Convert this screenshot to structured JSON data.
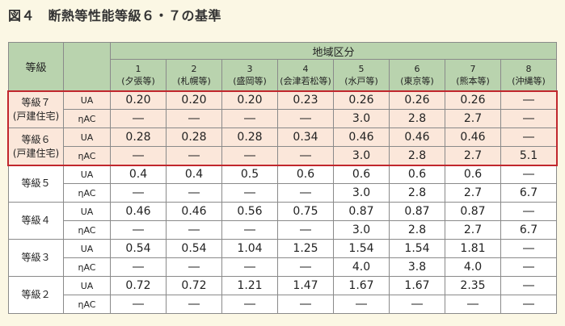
{
  "title": "図４　断熱等性能等級６・７の基準",
  "header": {
    "grade_label": "等級",
    "area_label": "地域区分",
    "regions": [
      {
        "num": "1",
        "name": "(夕張等)"
      },
      {
        "num": "2",
        "name": "(札幌等)"
      },
      {
        "num": "3",
        "name": "(盛岡等)"
      },
      {
        "num": "4",
        "name": "(会津若松等)"
      },
      {
        "num": "5",
        "name": "(水戸等)"
      },
      {
        "num": "6",
        "name": "(東京等)"
      },
      {
        "num": "7",
        "name": "(熊本等)"
      },
      {
        "num": "8",
        "name": "(沖縄等)"
      }
    ]
  },
  "grades": [
    {
      "name": "等級７",
      "sub": "(戸建住宅)",
      "highlight": true,
      "rows": [
        {
          "metric": "UA",
          "values": [
            "0.20",
            "0.20",
            "0.20",
            "0.23",
            "0.26",
            "0.26",
            "0.26",
            "―"
          ]
        },
        {
          "metric": "ηAC",
          "values": [
            "―",
            "―",
            "―",
            "―",
            "3.0",
            "2.8",
            "2.7",
            "―"
          ]
        }
      ]
    },
    {
      "name": "等級６",
      "sub": "(戸建住宅)",
      "highlight": true,
      "rows": [
        {
          "metric": "UA",
          "values": [
            "0.28",
            "0.28",
            "0.28",
            "0.34",
            "0.46",
            "0.46",
            "0.46",
            "―"
          ]
        },
        {
          "metric": "ηAC",
          "values": [
            "―",
            "―",
            "―",
            "―",
            "3.0",
            "2.8",
            "2.7",
            "5.1"
          ]
        }
      ]
    },
    {
      "name": "等級５",
      "sub": "",
      "highlight": false,
      "rows": [
        {
          "metric": "UA",
          "values": [
            "0.4",
            "0.4",
            "0.5",
            "0.6",
            "0.6",
            "0.6",
            "0.6",
            "―"
          ]
        },
        {
          "metric": "ηAC",
          "values": [
            "―",
            "―",
            "―",
            "―",
            "3.0",
            "2.8",
            "2.7",
            "6.7"
          ]
        }
      ]
    },
    {
      "name": "等級４",
      "sub": "",
      "highlight": false,
      "rows": [
        {
          "metric": "UA",
          "values": [
            "0.46",
            "0.46",
            "0.56",
            "0.75",
            "0.87",
            "0.87",
            "0.87",
            "―"
          ]
        },
        {
          "metric": "ηAC",
          "values": [
            "―",
            "―",
            "―",
            "―",
            "3.0",
            "2.8",
            "2.7",
            "6.7"
          ]
        }
      ]
    },
    {
      "name": "等級３",
      "sub": "",
      "highlight": false,
      "rows": [
        {
          "metric": "UA",
          "values": [
            "0.54",
            "0.54",
            "1.04",
            "1.25",
            "1.54",
            "1.54",
            "1.81",
            "―"
          ]
        },
        {
          "metric": "ηAC",
          "values": [
            "―",
            "―",
            "―",
            "―",
            "4.0",
            "3.8",
            "4.0",
            "―"
          ]
        }
      ]
    },
    {
      "name": "等級２",
      "sub": "",
      "highlight": false,
      "rows": [
        {
          "metric": "UA",
          "values": [
            "0.72",
            "0.72",
            "1.21",
            "1.47",
            "1.67",
            "1.67",
            "2.35",
            "―"
          ]
        },
        {
          "metric": "ηAC",
          "values": [
            "―",
            "―",
            "―",
            "―",
            "―",
            "―",
            "―",
            "―"
          ]
        }
      ]
    }
  ]
}
